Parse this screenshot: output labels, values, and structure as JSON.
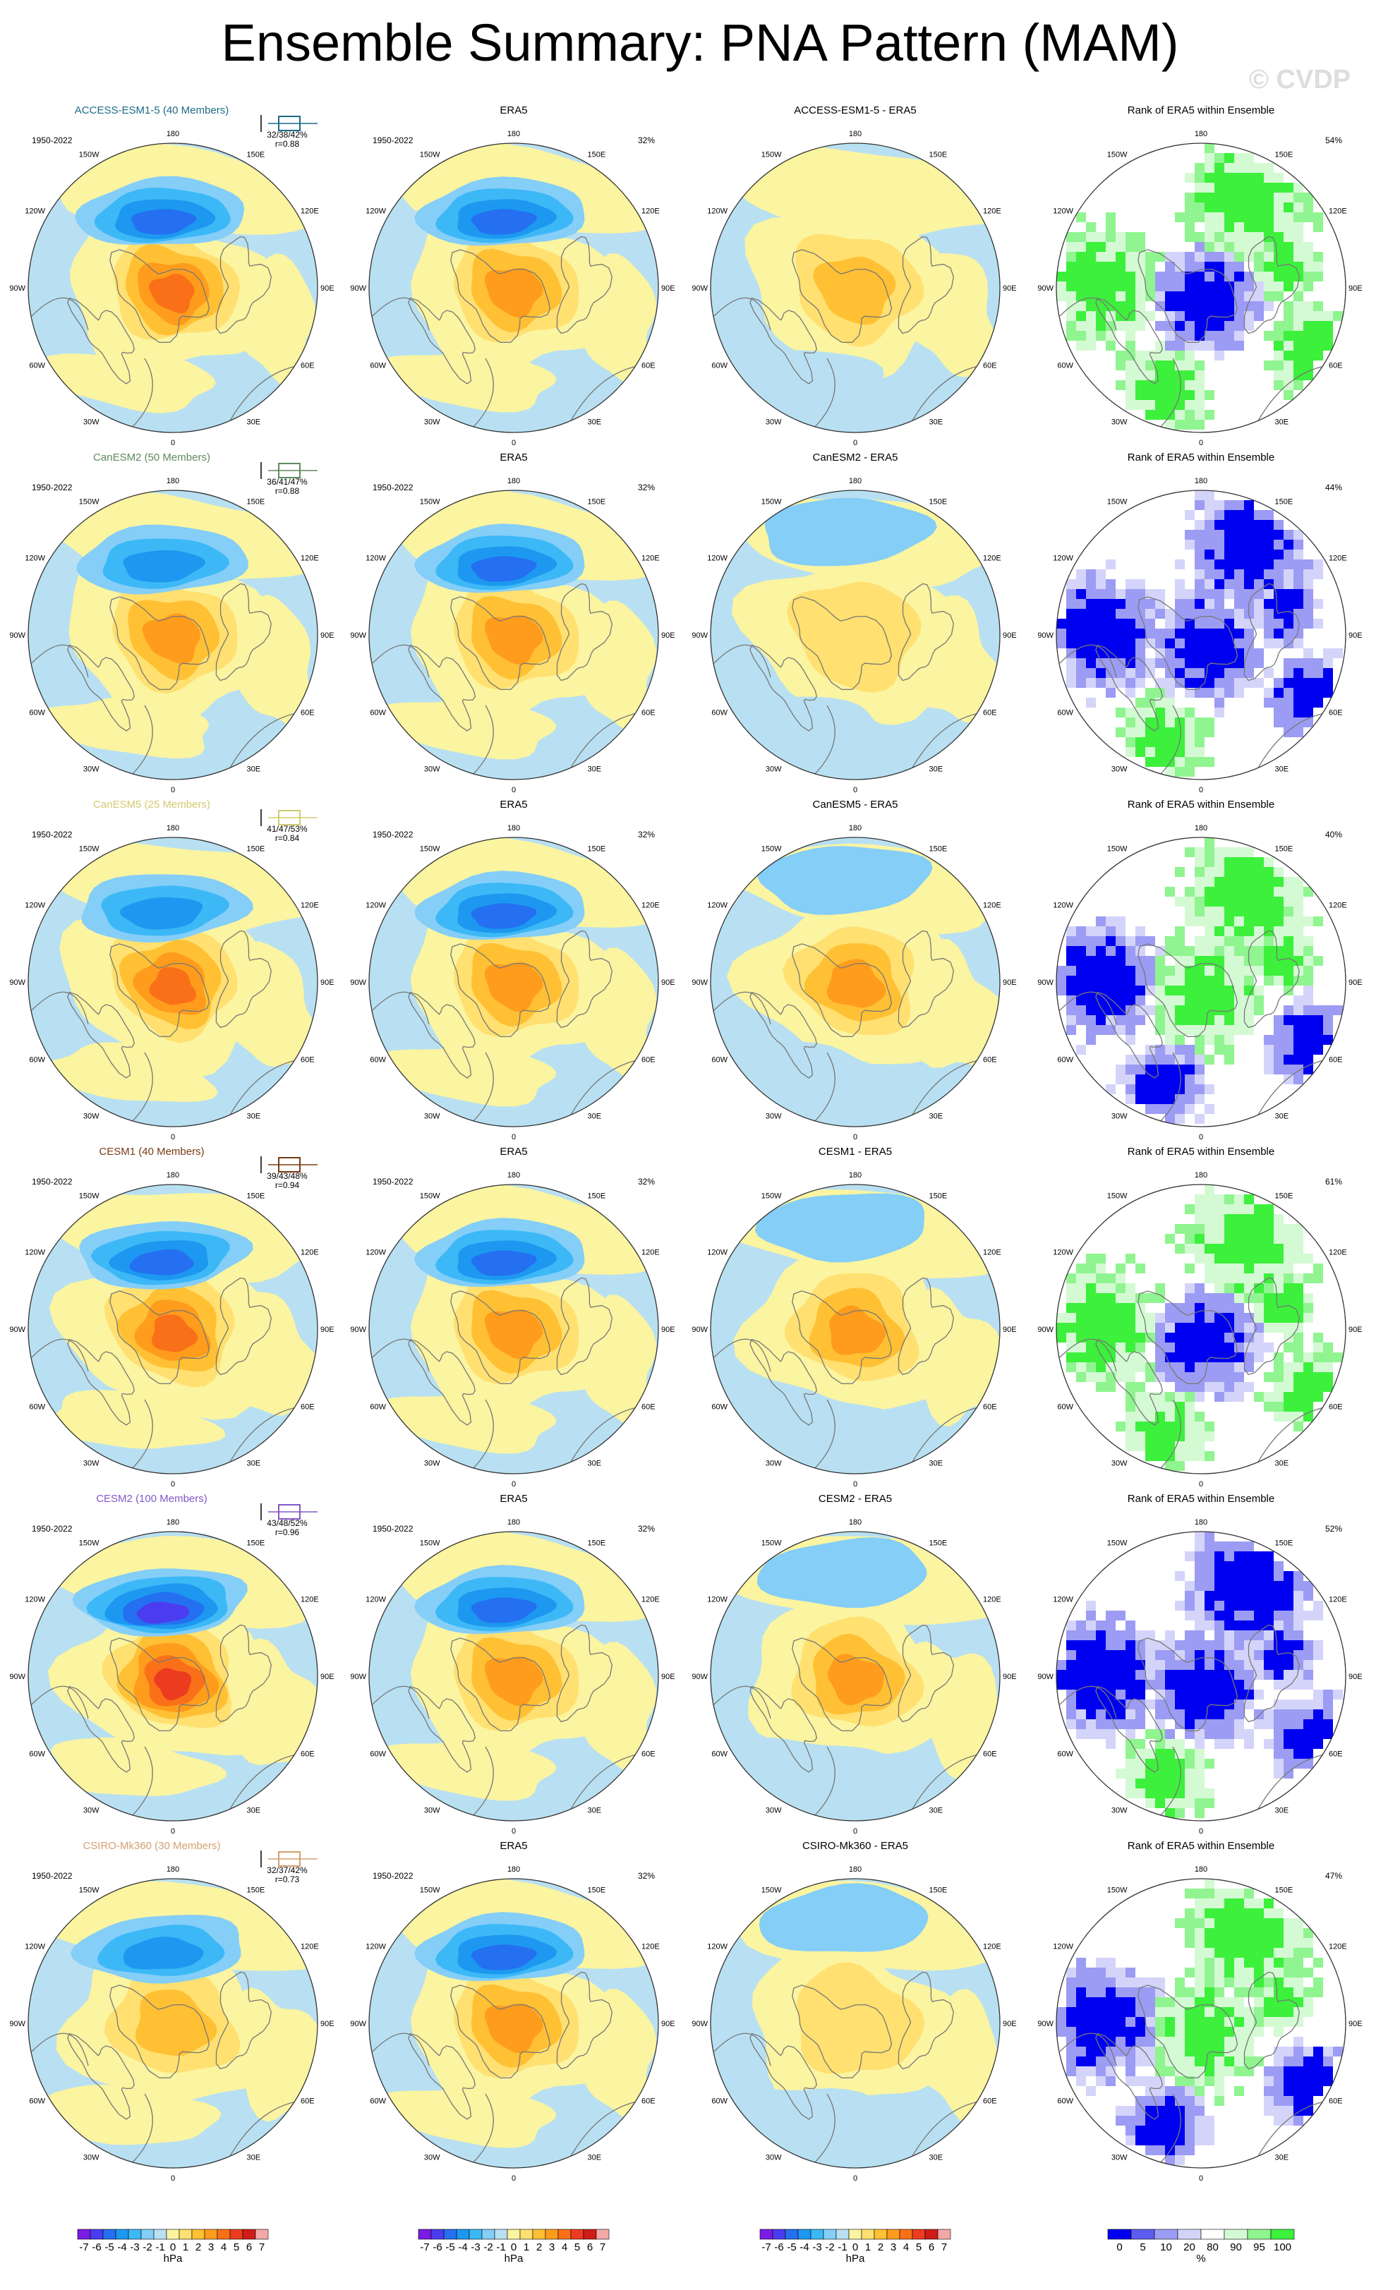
{
  "title": "Ensemble Summary: PNA Pattern (MAM)",
  "watermark": "© CVDP",
  "colors": {
    "anomaly_scale": [
      "#7a1ce4",
      "#4c3cf0",
      "#2470f0",
      "#1c98f0",
      "#3cb8f6",
      "#84cef8",
      "#b8e0f2",
      "#fbf4a0",
      "#ffe070",
      "#ffc034",
      "#ff9c1c",
      "#fa7018",
      "#ec3c20",
      "#d01c18",
      "#f4a8a8"
    ],
    "rank_scale": [
      "#0000f0",
      "#5c5cf0",
      "#9c9cf4",
      "#d4d4fa",
      "#ffffff",
      "#d4fad4",
      "#90f490",
      "#3cf03c"
    ],
    "coastline": "#777777"
  },
  "period": "1950-2022",
  "longitude_labels": [
    "180",
    "150E",
    "120E",
    "90E",
    "60E",
    "30E",
    "0",
    "30W",
    "60W",
    "90W",
    "120W",
    "150W"
  ],
  "column_titles": {
    "observation": "ERA5",
    "rank": "Rank of ERA5 within Ensemble"
  },
  "era5_pct": "32%",
  "rows": [
    {
      "model": "ACCESS-ESM1-5 (40 Members)",
      "color": "#1c6a86",
      "stats": "32/38/42%",
      "r": "r=0.88",
      "diff_title": "ACCESS-ESM1-5 - ERA5",
      "rank_pct": "54%"
    },
    {
      "model": "CanESM2 (50 Members)",
      "color": "#5f8a5f",
      "stats": "36/41/47%",
      "r": "r=0.88",
      "diff_title": "CanESM2 - ERA5",
      "rank_pct": "44%"
    },
    {
      "model": "CanESM5 (25 Members)",
      "color": "#d2ca70",
      "stats": "41/47/53%",
      "r": "r=0.84",
      "diff_title": "CanESM5 - ERA5",
      "rank_pct": "40%"
    },
    {
      "model": "CESM1 (40 Members)",
      "color": "#7a3a14",
      "stats": "39/43/48%",
      "r": "r=0.94",
      "diff_title": "CESM1 - ERA5",
      "rank_pct": "61%"
    },
    {
      "model": "CESM2 (100 Members)",
      "color": "#8458c8",
      "stats": "43/48/52%",
      "r": "r=0.96",
      "diff_title": "CESM2 - ERA5",
      "rank_pct": "52%"
    },
    {
      "model": "CSIRO-Mk360 (30 Members)",
      "color": "#d4a070",
      "stats": "32/37/42%",
      "r": "r=0.73",
      "diff_title": "CSIRO-Mk360 - ERA5",
      "rank_pct": "47%"
    }
  ],
  "colorbars": {
    "anomaly_ticks": [
      "-7",
      "-6",
      "-5",
      "-4",
      "-3",
      "-2",
      "-1",
      "0",
      "1",
      "2",
      "3",
      "4",
      "5",
      "6",
      "7"
    ],
    "anomaly_unit": "hPa",
    "rank_ticks": [
      "0",
      "5",
      "10",
      "20",
      "80",
      "90",
      "95",
      "100"
    ],
    "rank_unit": "%"
  },
  "chart_data": {
    "type": "heatmap",
    "description_fields": "polar stereographic maps, Northern Hemisphere",
    "panels_per_row": [
      "model ensemble mean",
      "ERA5",
      "model - ERA5",
      "Rank of ERA5 within Ensemble"
    ],
    "anomaly_levels_hPa": [
      -7,
      -6,
      -5,
      -4,
      -3,
      -2,
      -1,
      0,
      1,
      2,
      3,
      4,
      5,
      6,
      7
    ],
    "rank_levels_pct": [
      0,
      5,
      10,
      20,
      80,
      90,
      95,
      100
    ],
    "pattern_correlations": [
      {
        "model": "ACCESS-ESM1-5",
        "r": 0.88,
        "pct_var": [
          32,
          38,
          42
        ]
      },
      {
        "model": "CanESM2",
        "r": 0.88,
        "pct_var": [
          36,
          41,
          47
        ]
      },
      {
        "model": "CanESM5",
        "r": 0.84,
        "pct_var": [
          41,
          47,
          53
        ]
      },
      {
        "model": "CESM1",
        "r": 0.94,
        "pct_var": [
          39,
          43,
          48
        ]
      },
      {
        "model": "CESM2",
        "r": 0.96,
        "pct_var": [
          43,
          48,
          52
        ]
      },
      {
        "model": "CSIRO-Mk360",
        "r": 0.73,
        "pct_var": [
          32,
          37,
          42
        ]
      }
    ],
    "era5_pct_var": 32,
    "rank_pct": [
      54,
      44,
      40,
      61,
      52,
      47
    ]
  }
}
